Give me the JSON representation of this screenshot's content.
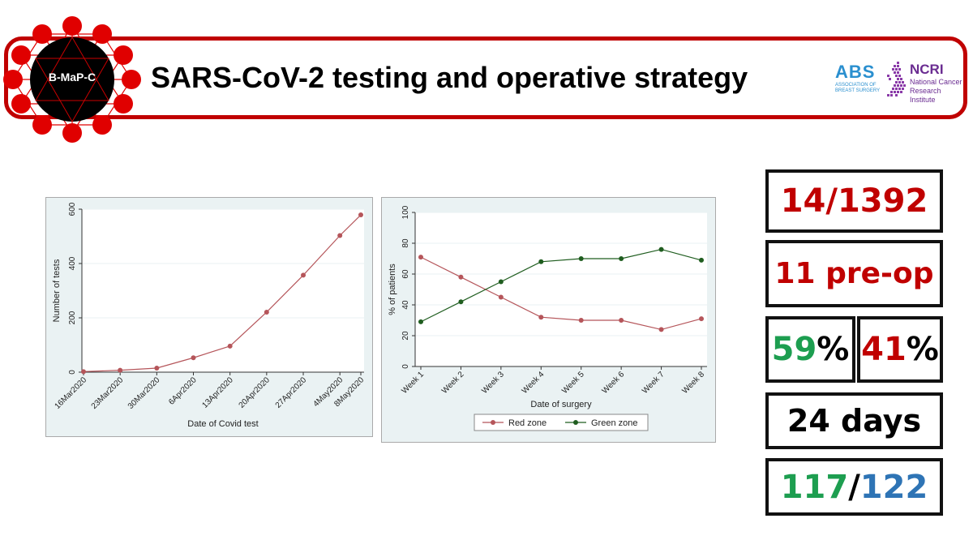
{
  "header": {
    "title": "SARS-CoV-2 testing and operative strategy",
    "logo_text": "B-MaP-C",
    "abs_logo": {
      "mark": "ABS",
      "subtitle": "ASSOCIATION OF BREAST SURGERY"
    },
    "ncri_logo": {
      "mark": "NCRI",
      "subtitle": "National Cancer Research Institute"
    },
    "colors": {
      "brand_red": "#c00000",
      "abs_blue": "#2a8fcf",
      "ncri_purple": "#6a2c91"
    }
  },
  "chart_data": [
    {
      "type": "line",
      "xlabel": "Date of Covid test",
      "ylabel": "Number of tests",
      "categories": [
        "16Mar2020",
        "23Mar2020",
        "30Mar2020",
        "6Apr2020",
        "13Apr2020",
        "20Apr2020",
        "27Apr2020",
        "4May2020",
        "8May2020"
      ],
      "x": [
        0,
        7,
        14,
        21,
        28,
        35,
        42,
        49,
        53
      ],
      "values": [
        2,
        7,
        15,
        53,
        96,
        221,
        357,
        503,
        579
      ],
      "ylim": [
        0,
        600
      ],
      "yticks": [
        0,
        200,
        400,
        600
      ],
      "color": "#b5555a",
      "grid": true
    },
    {
      "type": "line",
      "xlabel": "Date of surgery",
      "ylabel": "% of patients",
      "categories": [
        "Week 1",
        "Week 2",
        "Week 3",
        "Week 4",
        "Week 5",
        "Week 6",
        "Week 7",
        "Week 8"
      ],
      "ylim": [
        0,
        100
      ],
      "yticks": [
        0,
        20,
        40,
        60,
        80,
        100
      ],
      "grid": true,
      "legend_position": "bottom",
      "series": [
        {
          "name": "Red zone",
          "color": "#b5555a",
          "values": [
            71,
            58,
            45,
            32,
            30,
            30,
            24,
            31
          ]
        },
        {
          "name": "Green zone",
          "color": "#1f5d1f",
          "values": [
            29,
            42,
            55,
            68,
            70,
            70,
            76,
            69
          ]
        }
      ]
    }
  ],
  "stats": {
    "box1": "14/1392",
    "box2": "11 pre-op",
    "box3a": {
      "num": "59",
      "pct": "%"
    },
    "box3b": {
      "num": "41",
      "pct": "%"
    },
    "box4": "24 days",
    "box5": {
      "num1": "117",
      "sep": "/",
      "num2": "122"
    }
  }
}
